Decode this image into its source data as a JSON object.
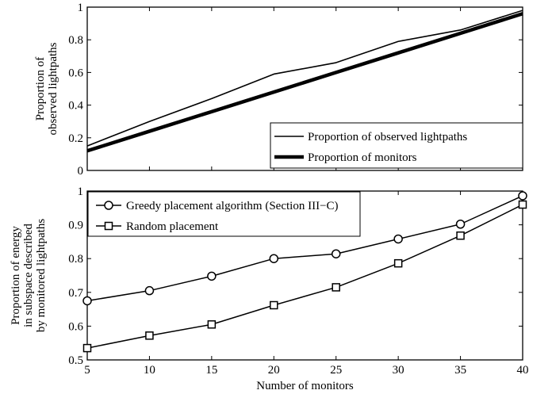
{
  "chart_data": [
    {
      "type": "line",
      "ylabel": [
        "Proportion of",
        "observed lightpaths"
      ],
      "xlabel": "",
      "x": [
        5,
        10,
        15,
        20,
        25,
        30,
        35,
        40
      ],
      "xlim": [
        5,
        40
      ],
      "ylim": [
        0,
        1
      ],
      "yticks": [
        0,
        0.2,
        0.4,
        0.6,
        0.8,
        1
      ],
      "ytick_labels": [
        "0",
        "0.2",
        "0.4",
        "0.6",
        "0.8",
        "1"
      ],
      "legend_position": "bottom-right",
      "series": [
        {
          "name": "Proportion of observed lightpaths",
          "values": [
            0.15,
            0.3,
            0.44,
            0.59,
            0.66,
            0.79,
            0.86,
            0.98
          ],
          "style": "thin",
          "color": "#000000"
        },
        {
          "name": "Proportion of monitors",
          "values": [
            0.12,
            0.24,
            0.36,
            0.48,
            0.6,
            0.72,
            0.84,
            0.96
          ],
          "style": "thick",
          "color": "#000000"
        }
      ]
    },
    {
      "type": "line",
      "ylabel": [
        "Proportion of energy",
        "in subspace described",
        "by monitored lightpaths"
      ],
      "xlabel": "Number of monitors",
      "x": [
        5,
        10,
        15,
        20,
        25,
        30,
        35,
        40
      ],
      "xlim": [
        5,
        40
      ],
      "ylim": [
        0.5,
        1
      ],
      "xticks": [
        5,
        10,
        15,
        20,
        25,
        30,
        35,
        40
      ],
      "xtick_labels": [
        "5",
        "10",
        "15",
        "20",
        "25",
        "30",
        "35",
        "40"
      ],
      "yticks": [
        0.5,
        0.6,
        0.7,
        0.8,
        0.9,
        1
      ],
      "ytick_labels": [
        "0.5",
        "0.6",
        "0.7",
        "0.8",
        "0.9",
        "1"
      ],
      "legend_position": "top-left",
      "series": [
        {
          "name": "Greedy placement algorithm (Section III−C)",
          "values": [
            0.675,
            0.705,
            0.748,
            0.8,
            0.814,
            0.858,
            0.902,
            0.986
          ],
          "marker": "circle",
          "color": "#000000"
        },
        {
          "name": "Random placement",
          "values": [
            0.535,
            0.572,
            0.605,
            0.662,
            0.715,
            0.786,
            0.868,
            0.96
          ],
          "marker": "square",
          "color": "#000000"
        }
      ]
    }
  ]
}
